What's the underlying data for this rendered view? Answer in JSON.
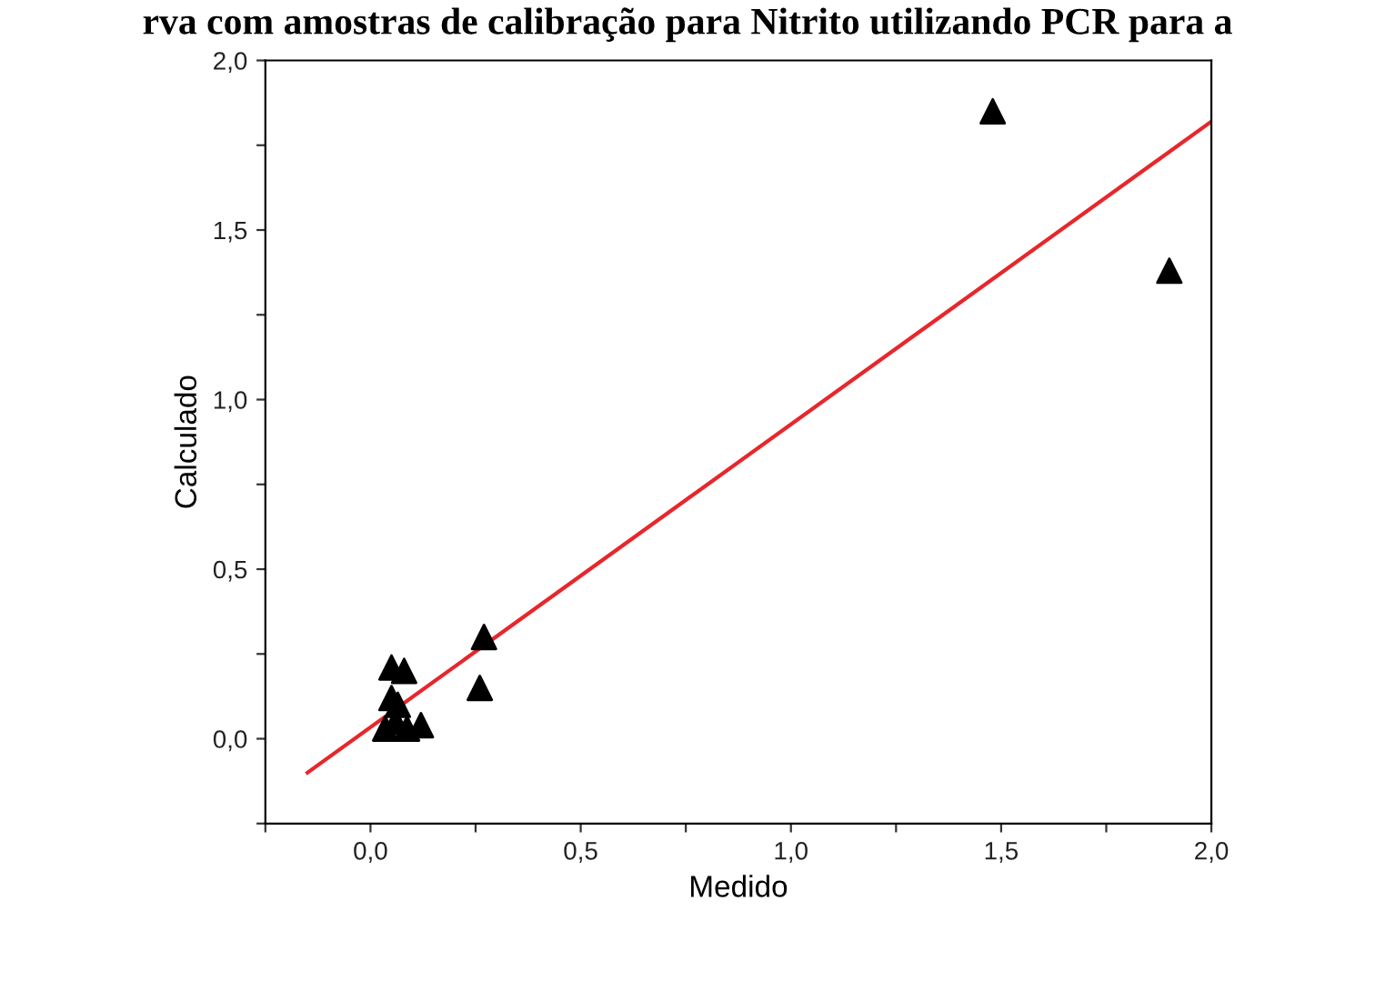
{
  "chart_data": {
    "type": "scatter",
    "title": "rva com amostras de calibração para Nitrito utilizando PCR para a",
    "xlabel": "Medido",
    "ylabel": "Calculado",
    "xlim": [
      -0.25,
      2.0
    ],
    "ylim": [
      -0.25,
      2.0
    ],
    "xticks": [
      {
        "value": -0.25,
        "label": null
      },
      {
        "value": 0,
        "label": "0,0"
      },
      {
        "value": 0.25,
        "label": null
      },
      {
        "value": 0.5,
        "label": "0,5"
      },
      {
        "value": 0.75,
        "label": null
      },
      {
        "value": 1.0,
        "label": "1,0"
      },
      {
        "value": 1.25,
        "label": null
      },
      {
        "value": 1.5,
        "label": "1,5"
      },
      {
        "value": 1.75,
        "label": null
      },
      {
        "value": 2.0,
        "label": "2,0"
      }
    ],
    "yticks": [
      {
        "value": -0.25,
        "label": null
      },
      {
        "value": 0,
        "label": "0,0"
      },
      {
        "value": 0.25,
        "label": null
      },
      {
        "value": 0.5,
        "label": "0,5"
      },
      {
        "value": 0.75,
        "label": null
      },
      {
        "value": 1.0,
        "label": "1,0"
      },
      {
        "value": 1.25,
        "label": null
      },
      {
        "value": 1.5,
        "label": "1,5"
      },
      {
        "value": 1.75,
        "label": null
      },
      {
        "value": 2.0,
        "label": "2,0"
      }
    ],
    "grid": false,
    "legend": false,
    "series": [
      {
        "marker": "triangle",
        "color": "#000000",
        "x": [
          1.48,
          1.9,
          0.27,
          0.26,
          0.05,
          0.08,
          0.05,
          0.065,
          0.035,
          0.087,
          0.12,
          0.06
        ],
        "values": [
          1.85,
          1.38,
          0.3,
          0.15,
          0.21,
          0.2,
          0.12,
          0.1,
          0.03,
          0.03,
          0.04,
          0.05
        ]
      },
      {
        "type": "line",
        "color": "#e8262b",
        "line_style": "solid",
        "x": [
          -0.15,
          2.0
        ],
        "values": [
          -0.1,
          1.82
        ]
      }
    ]
  }
}
